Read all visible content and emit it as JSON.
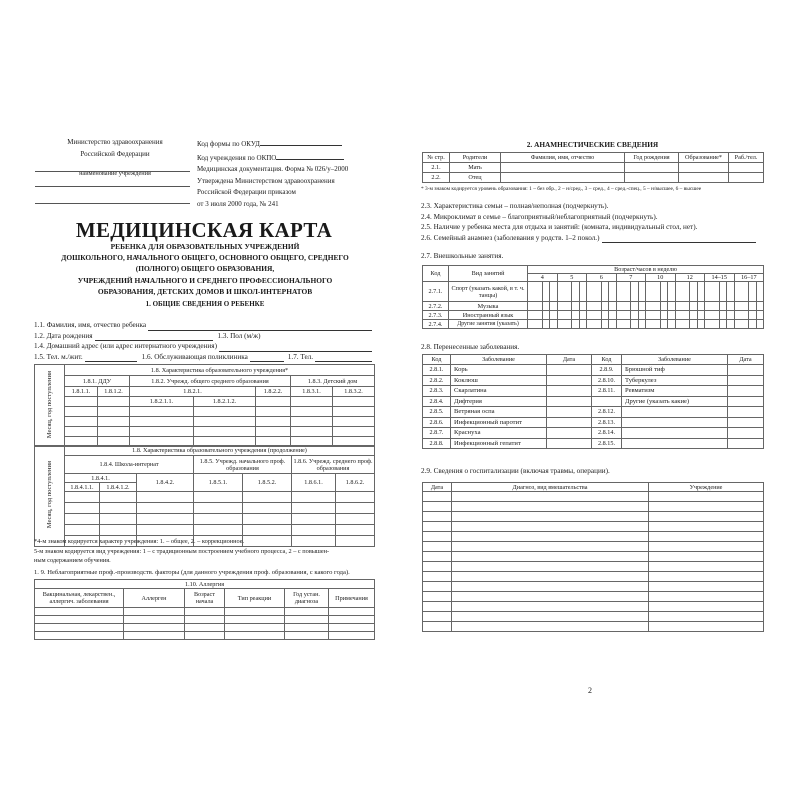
{
  "left_page": {
    "header_left": {
      "ministry_line1": "Министерство здравоохранения",
      "ministry_line2": "Российской Федерации",
      "institution_caption": "наименование учреждения"
    },
    "header_right": [
      "Код формы по ОКУД",
      "Код учреждения по ОКПО",
      "Медицинская документация. Форма № 026/у–2000",
      "Утверждена Министерством здравоохранения",
      "Российской Федерации приказом",
      "от 3 июля 2000 года, № 241"
    ],
    "title": "МЕДИЦИНСКАЯ КАРТА",
    "subtitle_lines": [
      "РЕБЕНКА ДЛЯ ОБРАЗОВАТЕЛЬНЫХ УЧРЕЖДЕНИЙ",
      "ДОШКОЛЬНОГО, НАЧАЛЬНОГО ОБЩЕГО, ОСНОВНОГО ОБЩЕГО, СРЕДНЕГО",
      "(ПОЛНОГО) ОБЩЕГО ОБРАЗОВАНИЯ,",
      "УЧРЕЖДЕНИЙ НАЧАЛЬНОГО И СРЕДНЕГО ПРОФЕССИОНАЛЬНОГО",
      "ОБРАЗОВАНИЯ, ДЕТСКИХ ДОМОВ И ШКОЛ-ИНТЕРНАТОВ"
    ],
    "section1_title": "1. ОБЩИЕ СВЕДЕНИЯ О РЕБЕНКЕ",
    "fields": {
      "f1_1": "1.1. Фамилия, имя, отчество ребенка",
      "f1_2": "1.2. Дата рождения",
      "f1_3": "1.3. Пол (м/ж)",
      "f1_4": "1.4. Домашний адрес (или адрес интернатного учреждения)",
      "f1_5": "1.5. Тел. м./жит.",
      "f1_6": "1.6. Обслуживающая поликлиника",
      "f1_7": "1.7. Тел."
    },
    "table_1_8": {
      "row_header": "Месяц, год поступления",
      "title": "1.8. Характеристика образовательного учреждения*",
      "g1": "1.8.1. ДДУ",
      "g2": "1.8.2. Учрежд. общего среднего образования",
      "g3": "1.8.3. Детский дом",
      "c1": "1.8.1.1.",
      "c2": "1.8.1.2.",
      "c3": "1.8.2.1.",
      "c4": "1.8.2.2.",
      "c5": "1.8.3.1.",
      "c6": "1.8.3.2.",
      "c3a": "1.8.2.1.1.",
      "c3b": "1.8.2.1.2."
    },
    "table_1_8_cont": {
      "row_header": "Месяц, год поступления",
      "title": "1.8. Характеристика образовательного учреждения (продолжение)",
      "g4": "1.8.4. Школа-интернат",
      "g5": "1.8.5. Учрежд. начального проф. образования",
      "g6": "1.8.6. Учрежд. среднего проф. образования",
      "c41": "1.8.4.1.",
      "c411": "1.8.4.1.1.",
      "c412": "1.8.4.1.2.",
      "c42": "1.8.4.2.",
      "c51": "1.8.5.1.",
      "c52": "1.8.5.2.",
      "c61": "1.8.6.1.",
      "c62": "1.8.6.2."
    },
    "notes": [
      "*4-м знаком кодируется характер учреждения: 1. – общее, 2. – коррекционное.",
      "5-м знаком кодируется вид учреждения: 1 – с традиционным построением учебного процесса, 2 – с повышен-",
      "ным содержанием обучения."
    ],
    "item_1_9": "1. 9. Неблагоприятные проф.-производств. факторы (для данного учреждения проф. образования, с какого года).",
    "table_1_10": {
      "title": "1.10. Аллергия",
      "columns": [
        "Вакцинальная, лекарствен., аллергич. заболевания",
        "Аллерген",
        "Возраст начала",
        "Тип реакции",
        "Год устан. диагноза",
        "Примечания"
      ]
    }
  },
  "right_page": {
    "section2_title": "2. АНАМНЕСТИЧЕСКИЕ СВЕДЕНИЯ",
    "parents_table": {
      "columns": [
        "№ стр.",
        "Родители",
        "Фамилия, имя, отчество",
        "Год рождения",
        "Образование*",
        "Раб./тел."
      ],
      "rows": [
        {
          "num": "2.1.",
          "parent": "Мать"
        },
        {
          "num": "2.2.",
          "parent": "Отец"
        }
      ]
    },
    "footnote": "* 3-м знаком кодируется уровень образования: 1 – без обр., 2 – н/сред., 3 – сред., 4 – сред.-спец., 5 – н/высшее, 6 – высшее",
    "items": [
      "2.3. Характеристика семьи – полная/неполная (подчеркнуть).",
      "2.4. Микроклимат в семье – благоприятный/неблагоприятный (подчеркнуть).",
      "2.5. Наличие у ребенка места для отдыха и занятий: (комната, индивидуальный стол, нет).",
      "2.6. Семейный анамнез (заболевания у родств. 1–2 покол.)"
    ],
    "item_2_7": "2.7. Внешкольные занятия.",
    "activities_table": {
      "col_code": "Код",
      "col_kind": "Вид занятий",
      "age_header": "Возраст/часов в неделю",
      "ages": [
        "4",
        "5",
        "6",
        "7",
        "10",
        "12",
        "14–15",
        "16–17"
      ],
      "rows": [
        {
          "code": "2.7.1.",
          "kind": "Спорт (указать какой, в т. ч. танцы)"
        },
        {
          "code": "2.7.2.",
          "kind": "Музыка"
        },
        {
          "code": "2.7.3.",
          "kind": "Иностранный язык"
        },
        {
          "code": "2.7.4.",
          "kind": "Другие занятия (указать)"
        }
      ]
    },
    "item_2_8": "2.8. Перенесенные заболевания.",
    "diseases_table": {
      "columns": [
        "Код",
        "Заболевание",
        "Дата",
        "Код",
        "Заболевание",
        "Дата"
      ],
      "rows": [
        {
          "code1": "2.8.1.",
          "name1": "Корь",
          "code2": "2.8.9.",
          "name2": "Брюшной тиф"
        },
        {
          "code1": "2.8.2.",
          "name1": "Коклюш",
          "code2": "2.8.10.",
          "name2": "Туберкулез"
        },
        {
          "code1": "2.8.3.",
          "name1": "Скарлатина",
          "code2": "2.8.11.",
          "name2": "Ревматизм"
        },
        {
          "code1": "2.8.4.",
          "name1": "Дифтерия",
          "code2": "",
          "name2": "Другие (указать какие)"
        },
        {
          "code1": "2.8.5.",
          "name1": "Ветряная оспа",
          "code2": "2.8.12.",
          "name2": ""
        },
        {
          "code1": "2.8.6.",
          "name1": "Инфекционный паротит",
          "code2": "2.8.13.",
          "name2": ""
        },
        {
          "code1": "2.8.7.",
          "name1": "Краснуха",
          "code2": "2.8.14.",
          "name2": ""
        },
        {
          "code1": "2.8.8.",
          "name1": "Инфекционный гепатит",
          "code2": "2.8.15.",
          "name2": ""
        }
      ]
    },
    "item_2_9": "2.9. Сведения о госпитализации (включая травмы, операции).",
    "hospital_table": {
      "columns": [
        "Дата",
        "Диагноз, вид вмешательства",
        "Учреждение"
      ]
    },
    "page_number": "2"
  }
}
